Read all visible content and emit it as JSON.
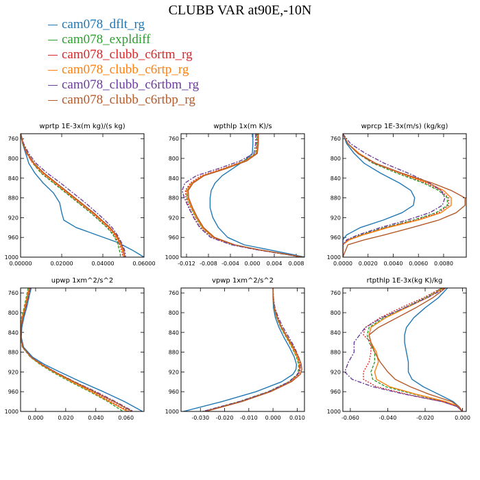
{
  "title": "CLUBB VAR at90E,-10N",
  "legend": [
    {
      "name": "cam078_dflt_rg",
      "color": "#1f77b4"
    },
    {
      "name": "cam078_expldiff",
      "color": "#2ca02c"
    },
    {
      "name": "cam078_clubb_c6rtm_rg",
      "color": "#d62728"
    },
    {
      "name": "cam078_clubb_c6rtp_rg",
      "color": "#ff7f0e"
    },
    {
      "name": "cam078_clubb_c6rtbm_rg",
      "color": "#6a3d9a"
    },
    {
      "name": "cam078_clubb_c6rtbp_rg",
      "color": "#b35a2a"
    }
  ],
  "chart_data": [
    {
      "type": "line",
      "title": "wprtp  1E-3x(m kg)/(s kg)",
      "xlim": [
        0,
        0.06
      ],
      "ylim": [
        1000,
        750
      ],
      "xticks": [
        0,
        0.02,
        0.04,
        0.06
      ],
      "xtick_labels": [
        "0.00000",
        "0.02000",
        "0.04000",
        "0.06000"
      ],
      "yticks": [
        760,
        800,
        840,
        880,
        920,
        960,
        1000
      ],
      "ytick_labels": [
        "760",
        "800",
        "840",
        "880",
        "920",
        "960",
        "1000"
      ],
      "y": [
        750,
        770,
        790,
        810,
        830,
        850,
        870,
        890,
        910,
        925,
        940,
        955,
        970,
        985,
        995,
        1000
      ],
      "series": [
        {
          "values": [
            0.0001,
            0.001,
            0.0025,
            0.004,
            0.007,
            0.011,
            0.016,
            0.019,
            0.02,
            0.021,
            0.027,
            0.037,
            0.047,
            0.054,
            0.058,
            0.06
          ]
        },
        {
          "values": [
            0.0001,
            0.001,
            0.003,
            0.006,
            0.01,
            0.016,
            0.022,
            0.028,
            0.034,
            0.038,
            0.042,
            0.045,
            0.047,
            0.048,
            0.0485,
            0.0485
          ]
        },
        {
          "values": [
            0.0001,
            0.001,
            0.003,
            0.006,
            0.0105,
            0.0165,
            0.0225,
            0.0285,
            0.0345,
            0.0385,
            0.0425,
            0.0455,
            0.0475,
            0.049,
            0.0495,
            0.0495
          ]
        },
        {
          "values": [
            0.0001,
            0.0012,
            0.0032,
            0.0063,
            0.011,
            0.017,
            0.023,
            0.029,
            0.035,
            0.039,
            0.043,
            0.046,
            0.048,
            0.0495,
            0.05,
            0.05
          ]
        },
        {
          "values": [
            0.0001,
            0.0015,
            0.004,
            0.0075,
            0.013,
            0.0195,
            0.0255,
            0.0315,
            0.037,
            0.041,
            0.0445,
            0.047,
            0.049,
            0.0505,
            0.051,
            0.051
          ]
        },
        {
          "values": [
            0.0001,
            0.0012,
            0.0034,
            0.0066,
            0.0115,
            0.0175,
            0.0235,
            0.0295,
            0.0355,
            0.0395,
            0.0435,
            0.0465,
            0.0485,
            0.05,
            0.0505,
            0.0505
          ]
        }
      ]
    },
    {
      "type": "line",
      "title": "wpthlp  1x(m K)/s",
      "xlim": [
        -0.013,
        0.0095
      ],
      "ylim": [
        1000,
        750
      ],
      "xticks": [
        -0.012,
        -0.008,
        -0.004,
        0,
        0.004,
        0.008
      ],
      "xtick_labels": [
        "-0.012",
        "-0.008",
        "-0.004",
        "0.000",
        "0.004",
        "0.008"
      ],
      "yticks": [
        760,
        800,
        840,
        880,
        920,
        960,
        1000
      ],
      "ytick_labels": [
        "760",
        "800",
        "840",
        "880",
        "920",
        "960",
        "1000"
      ],
      "y": [
        750,
        770,
        790,
        805,
        820,
        835,
        850,
        865,
        880,
        900,
        920,
        940,
        960,
        975,
        985,
        995,
        1000
      ],
      "series": [
        {
          "values": [
            0.0001,
            0.0001,
            0,
            -0.0015,
            -0.0035,
            -0.0055,
            -0.0068,
            -0.0075,
            -0.0077,
            -0.0077,
            -0.0072,
            -0.0062,
            -0.0045,
            -0.0015,
            0.003,
            0.0075,
            0.0095
          ]
        },
        {
          "values": [
            0.0008,
            0.0008,
            0.0006,
            -0.0015,
            -0.005,
            -0.009,
            -0.0111,
            -0.012,
            -0.0119,
            -0.0112,
            -0.0103,
            -0.0092,
            -0.0072,
            -0.0035,
            0.001,
            0.0065,
            0.009
          ]
        },
        {
          "values": [
            0.0009,
            0.0009,
            0.0007,
            -0.0014,
            -0.0052,
            -0.0093,
            -0.0113,
            -0.0122,
            -0.0121,
            -0.0115,
            -0.0106,
            -0.0095,
            -0.0075,
            -0.0037,
            0.0009,
            0.0065,
            0.009
          ]
        },
        {
          "values": [
            0.001,
            0.001,
            0.0008,
            -0.0012,
            -0.0049,
            -0.009,
            -0.011,
            -0.0119,
            -0.0118,
            -0.0111,
            -0.0102,
            -0.0091,
            -0.0071,
            -0.0034,
            0.0011,
            0.0066,
            0.0091
          ]
        },
        {
          "values": [
            0.0006,
            0.0006,
            0.0003,
            -0.0022,
            -0.006,
            -0.0102,
            -0.0123,
            -0.0128,
            -0.0124,
            -0.0116,
            -0.0107,
            -0.0096,
            -0.0076,
            -0.0038,
            0.0008,
            0.0064,
            0.0089
          ]
        },
        {
          "values": [
            0.0011,
            0.0011,
            0.0009,
            -0.001,
            -0.0046,
            -0.0088,
            -0.0108,
            -0.0117,
            -0.0116,
            -0.0109,
            -0.01,
            -0.0089,
            -0.0069,
            -0.0032,
            0.0012,
            0.0067,
            0.0092
          ]
        }
      ]
    },
    {
      "type": "line",
      "title": "wprcp  1E-3x(m/s) (kg/kg)",
      "xlim": [
        0,
        0.0098
      ],
      "ylim": [
        1000,
        750
      ],
      "xticks": [
        0,
        0.002,
        0.004,
        0.006,
        0.008
      ],
      "xtick_labels": [
        "0.0000",
        "0.0020",
        "0.0040",
        "0.0060",
        "0.0080"
      ],
      "yticks": [
        760,
        800,
        840,
        880,
        920,
        960,
        1000
      ],
      "ytick_labels": [
        "760",
        "800",
        "840",
        "880",
        "920",
        "960",
        "1000"
      ],
      "y": [
        750,
        770,
        790,
        810,
        830,
        850,
        865,
        880,
        895,
        910,
        925,
        940,
        955,
        965,
        975,
        1000
      ],
      "series": [
        {
          "values": [
            0,
            0.0003,
            0.0009,
            0.0017,
            0.003,
            0.0045,
            0.0054,
            0.0057,
            0.0056,
            0.0047,
            0.0032,
            0.0014,
            0.0003,
            0,
            0,
            0
          ]
        },
        {
          "values": [
            0,
            0.0004,
            0.0012,
            0.0024,
            0.0043,
            0.0064,
            0.0076,
            0.0083,
            0.0083,
            0.0074,
            0.0056,
            0.0033,
            0.0014,
            0.0004,
            0,
            0
          ]
        },
        {
          "values": [
            0,
            0.0004,
            0.0012,
            0.0025,
            0.0045,
            0.0066,
            0.0078,
            0.0084,
            0.0084,
            0.0076,
            0.0058,
            0.0034,
            0.0015,
            0.0004,
            0,
            0
          ]
        },
        {
          "values": [
            0,
            0.0004,
            0.0013,
            0.0026,
            0.0046,
            0.0068,
            0.008,
            0.0086,
            0.0086,
            0.0078,
            0.006,
            0.0036,
            0.0016,
            0.0005,
            0,
            0
          ]
        },
        {
          "values": [
            0,
            0.0006,
            0.0018,
            0.0033,
            0.0052,
            0.0069,
            0.0078,
            0.0081,
            0.0079,
            0.0069,
            0.0051,
            0.003,
            0.0012,
            0.0003,
            0,
            0
          ]
        },
        {
          "values": [
            0,
            0.0004,
            0.0012,
            0.0026,
            0.0047,
            0.0071,
            0.0086,
            0.0097,
            0.0097,
            0.009,
            0.0076,
            0.0055,
            0.0033,
            0.0017,
            0.0004,
            0
          ]
        }
      ]
    },
    {
      "type": "line",
      "title": "upwp   1xm^2/s^2",
      "xlim": [
        -0.01,
        0.072
      ],
      "ylim": [
        1000,
        750
      ],
      "xticks": [
        0,
        0.02,
        0.04,
        0.06
      ],
      "xtick_labels": [
        "0.000",
        "0.020",
        "0.040",
        "0.060"
      ],
      "yticks": [
        760,
        800,
        840,
        880,
        920,
        960,
        1000
      ],
      "ytick_labels": [
        "760",
        "800",
        "840",
        "880",
        "920",
        "960",
        "1000"
      ],
      "y": [
        750,
        770,
        790,
        810,
        830,
        850,
        870,
        890,
        905,
        920,
        940,
        960,
        980,
        1000
      ],
      "series": [
        {
          "values": [
            -0.003,
            -0.0045,
            -0.006,
            -0.0078,
            -0.0092,
            -0.0095,
            -0.008,
            -0.002,
            0.006,
            0.016,
            0.03,
            0.045,
            0.059,
            0.071
          ]
        },
        {
          "values": [
            -0.005,
            -0.0063,
            -0.0077,
            -0.0093,
            -0.0102,
            -0.01,
            -0.0088,
            -0.0035,
            0.003,
            0.011,
            0.023,
            0.036,
            0.048,
            0.058
          ]
        },
        {
          "values": [
            -0.004,
            -0.0055,
            -0.007,
            -0.0087,
            -0.0098,
            -0.0098,
            -0.0084,
            -0.003,
            0.004,
            0.0125,
            0.025,
            0.038,
            0.05,
            0.062
          ]
        },
        {
          "values": [
            -0.0045,
            -0.0058,
            -0.0073,
            -0.009,
            -0.01,
            -0.0099,
            -0.0086,
            -0.0032,
            0.0035,
            0.012,
            0.024,
            0.037,
            0.049,
            0.061
          ]
        },
        {
          "values": [
            -0.0035,
            -0.005,
            -0.0066,
            -0.0083,
            -0.0096,
            -0.0097,
            -0.0083,
            -0.0028,
            0.0045,
            0.013,
            0.026,
            0.04,
            0.053,
            0.065
          ]
        },
        {
          "values": [
            -0.0038,
            -0.0052,
            -0.0068,
            -0.0085,
            -0.0097,
            -0.0098,
            -0.0085,
            -0.003,
            0.0042,
            0.0128,
            0.0255,
            0.039,
            0.052,
            0.064
          ]
        }
      ]
    },
    {
      "type": "line",
      "title": "vpwp   1xm^2/s^2",
      "xlim": [
        -0.038,
        0.013
      ],
      "ylim": [
        1000,
        750
      ],
      "xticks": [
        -0.03,
        -0.02,
        -0.01,
        0,
        0.01
      ],
      "xtick_labels": [
        "-0.030",
        "-0.020",
        "-0.010",
        "0.000",
        "0.010"
      ],
      "yticks": [
        760,
        800,
        840,
        880,
        920,
        960,
        1000
      ],
      "ytick_labels": [
        "760",
        "800",
        "840",
        "880",
        "920",
        "960",
        "1000"
      ],
      "y": [
        750,
        770,
        790,
        810,
        830,
        850,
        870,
        890,
        905,
        915,
        925,
        940,
        960,
        980,
        1000
      ],
      "series": [
        {
          "values": [
            0,
            0,
            0.0002,
            0.001,
            0.0025,
            0.0045,
            0.0068,
            0.0088,
            0.0097,
            0.0095,
            0.0082,
            0.0035,
            -0.007,
            -0.021,
            -0.037
          ]
        },
        {
          "values": [
            0,
            0.0001,
            0.0004,
            0.0015,
            0.0032,
            0.0055,
            0.0078,
            0.0097,
            0.0106,
            0.0106,
            0.01,
            0.0065,
            -0.002,
            -0.014,
            -0.029
          ]
        },
        {
          "values": [
            0,
            0.0001,
            0.0005,
            0.0017,
            0.0035,
            0.0058,
            0.0082,
            0.0102,
            0.0112,
            0.0113,
            0.0107,
            0.0072,
            -0.0012,
            -0.013,
            -0.028
          ]
        },
        {
          "values": [
            0,
            0.0001,
            0.0005,
            0.0016,
            0.0034,
            0.0057,
            0.008,
            0.01,
            0.0109,
            0.011,
            0.0104,
            0.0069,
            -0.0015,
            -0.0134,
            -0.0285
          ]
        },
        {
          "values": [
            0,
            0.0002,
            0.0008,
            0.0022,
            0.0042,
            0.0066,
            0.0089,
            0.0106,
            0.0113,
            0.0111,
            0.0102,
            0.0066,
            -0.0018,
            -0.0138,
            -0.029
          ]
        },
        {
          "values": [
            0,
            0.0001,
            0.0006,
            0.0018,
            0.0036,
            0.006,
            0.0085,
            0.0106,
            0.0117,
            0.0119,
            0.0113,
            0.0076,
            -0.001,
            -0.0128,
            -0.0278
          ]
        }
      ]
    },
    {
      "type": "line",
      "title": "rtpthlp  1E-3x(kg K)/kg",
      "xlim": [
        -0.064,
        0.002
      ],
      "ylim": [
        1000,
        750
      ],
      "xticks": [
        -0.06,
        -0.04,
        -0.02,
        0
      ],
      "xtick_labels": [
        "-0.060",
        "-0.040",
        "-0.020",
        "0.000"
      ],
      "yticks": [
        760,
        800,
        840,
        880,
        920,
        960,
        1000
      ],
      "ytick_labels": [
        "760",
        "800",
        "840",
        "880",
        "920",
        "960",
        "1000"
      ],
      "y": [
        750,
        770,
        790,
        810,
        830,
        845,
        860,
        880,
        900,
        920,
        935,
        950,
        965,
        980,
        990,
        1000
      ],
      "series": [
        {
          "values": [
            -0.008,
            -0.013,
            -0.02,
            -0.026,
            -0.03,
            -0.031,
            -0.031,
            -0.03,
            -0.029,
            -0.029,
            -0.027,
            -0.021,
            -0.013,
            -0.005,
            -0.002,
            0
          ]
        },
        {
          "values": [
            -0.011,
            -0.02,
            -0.031,
            -0.042,
            -0.05,
            -0.051,
            -0.05,
            -0.047,
            -0.047,
            -0.049,
            -0.048,
            -0.041,
            -0.026,
            -0.01,
            -0.003,
            0
          ]
        },
        {
          "values": [
            -0.011,
            -0.021,
            -0.033,
            -0.044,
            -0.052,
            -0.053,
            -0.049,
            -0.049,
            -0.05,
            -0.053,
            -0.053,
            -0.046,
            -0.03,
            -0.011,
            -0.003,
            0
          ]
        },
        {
          "values": [
            -0.01,
            -0.019,
            -0.03,
            -0.041,
            -0.049,
            -0.05,
            -0.049,
            -0.046,
            -0.045,
            -0.047,
            -0.046,
            -0.039,
            -0.025,
            -0.009,
            -0.002,
            0
          ]
        },
        {
          "values": [
            -0.009,
            -0.019,
            -0.031,
            -0.043,
            -0.052,
            -0.055,
            -0.058,
            -0.058,
            -0.061,
            -0.063,
            -0.059,
            -0.048,
            -0.031,
            -0.011,
            -0.003,
            0
          ]
        },
        {
          "values": [
            -0.009,
            -0.016,
            -0.025,
            -0.035,
            -0.045,
            -0.05,
            -0.049,
            -0.047,
            -0.044,
            -0.04,
            -0.036,
            -0.028,
            -0.018,
            -0.006,
            -0.002,
            0
          ]
        }
      ]
    }
  ]
}
